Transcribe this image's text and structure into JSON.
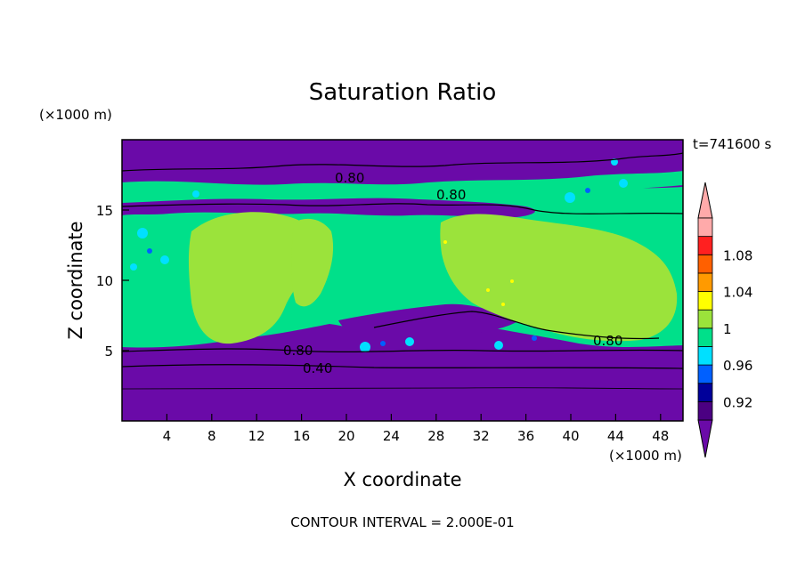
{
  "chart_data": {
    "type": "heatmap",
    "title": "Saturation Ratio",
    "xlabel": "X coordinate",
    "ylabel": "Z coordinate",
    "x_unit": "(×1000 m)",
    "z_unit": "(×1000 m)",
    "time_label": "t=741600 s",
    "footer": "CONTOUR INTERVAL = 2.000E-01",
    "xlim": [
      0,
      50
    ],
    "ylim": [
      0,
      20
    ],
    "x_ticks": [
      "4",
      "8",
      "12",
      "16",
      "20",
      "24",
      "28",
      "32",
      "36",
      "40",
      "44",
      "48"
    ],
    "y_ticks": [
      "5",
      "10",
      "15"
    ],
    "colorbar": {
      "labels": [
        "0.92",
        "0.96",
        "1",
        "1.04",
        "1.08"
      ],
      "levels": [
        0.9,
        0.92,
        0.94,
        0.96,
        0.98,
        1.0,
        1.02,
        1.04,
        1.06,
        1.08,
        1.1
      ],
      "colors": [
        "#4b0082",
        "#00009a",
        "#0060ff",
        "#00e0ff",
        "#00e08a",
        "#9be33b",
        "#ffff00",
        "#ff9a00",
        "#ff6000",
        "#ff2020",
        "#ffaaaa"
      ],
      "under_color": "#6a0aa8",
      "over_color": "#ffaaaa"
    },
    "contour_labels": [
      "0.80",
      "0.80",
      "0.80",
      "0.40",
      "0.80"
    ]
  }
}
